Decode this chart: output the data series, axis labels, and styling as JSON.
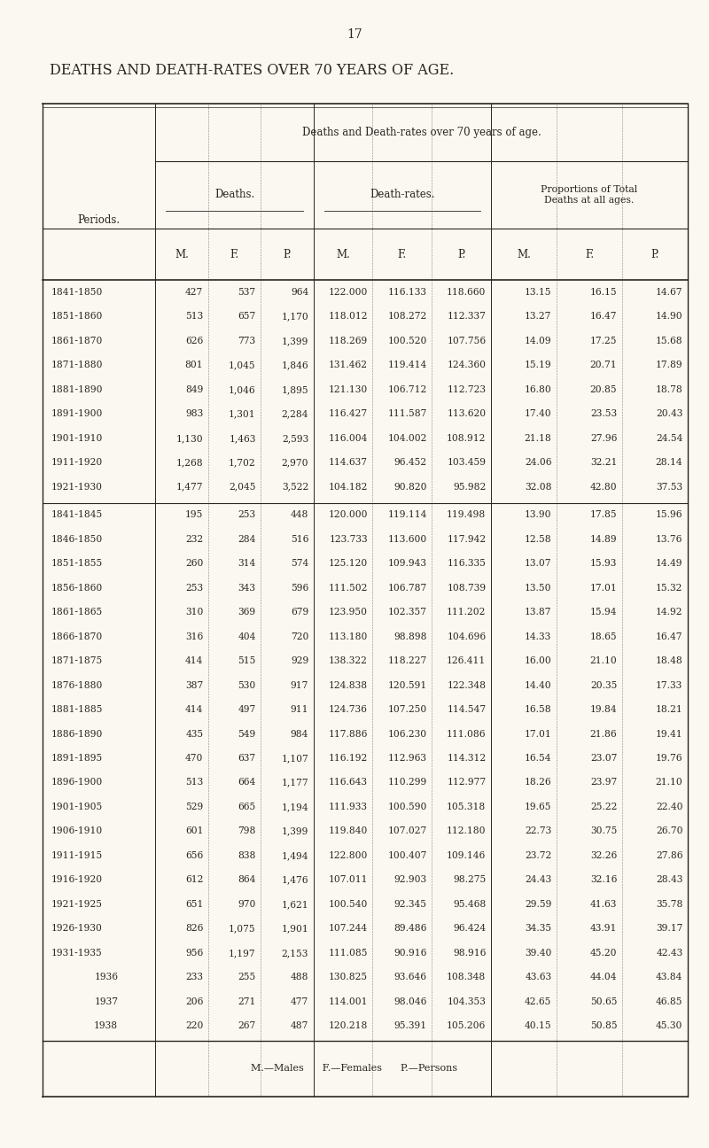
{
  "page_number": "17",
  "main_title": "DEATHS AND DEATH-RATES OVER 70 YEARS OF AGE.",
  "table_title": "Deaths and Death-rates over 70 years of age.",
  "col_group1": "Deaths.",
  "col_group2": "Death-rates.",
  "col_group3": "Proportions of Total\nDeaths at all ages.",
  "col_periods": "Periods.",
  "col_sub": [
    "M.",
    "F.",
    "P.",
    "M.",
    "F.",
    "P.",
    "M.",
    "F.",
    "P."
  ],
  "background_color": "#faf8f0",
  "text_color": "#2a2520",
  "rows": [
    [
      "1841-1850",
      "427",
      "537",
      "964",
      "122.000",
      "116.133",
      "118.660",
      "13.15",
      "16.15",
      "14.67"
    ],
    [
      "1851-1860",
      "513",
      "657",
      "1,170",
      "118.012",
      "108.272",
      "112.337",
      "13.27",
      "16.47",
      "14.90"
    ],
    [
      "1861-1870",
      "626",
      "773",
      "1,399",
      "118.269",
      "100.520",
      "107.756",
      "14.09",
      "17.25",
      "15.68"
    ],
    [
      "1871-1880",
      "801",
      "1,045",
      "1,846",
      "131.462",
      "119.414",
      "124.360",
      "15.19",
      "20.71",
      "17.89"
    ],
    [
      "1881-1890",
      "849",
      "1,046",
      "1,895",
      "121.130",
      "106.712",
      "112.723",
      "16.80",
      "20.85",
      "18.78"
    ],
    [
      "1891-1900",
      "983",
      "1,301",
      "2,284",
      "116.427",
      "111.587",
      "113.620",
      "17.40",
      "23.53",
      "20.43"
    ],
    [
      "1901-1910",
      "1,130",
      "1,463",
      "2,593",
      "116.004",
      "104.002",
      "108.912",
      "21.18",
      "27.96",
      "24.54"
    ],
    [
      "1911-1920",
      "1,268",
      "1,702",
      "2,970",
      "114.637",
      "96.452",
      "103.459",
      "24.06",
      "32.21",
      "28.14"
    ],
    [
      "1921-1930",
      "1,477",
      "2,045",
      "3,522",
      "104.182",
      "90.820",
      "95.982",
      "32.08",
      "42.80",
      "37.53"
    ],
    [
      "1841-1845",
      "195",
      "253",
      "448",
      "120.000",
      "119.114",
      "119.498",
      "13.90",
      "17.85",
      "15.96"
    ],
    [
      "1846-1850",
      "232",
      "284",
      "516",
      "123.733",
      "113.600",
      "117.942",
      "12.58",
      "14.89",
      "13.76"
    ],
    [
      "1851-1855",
      "260",
      "314",
      "574",
      "125.120",
      "109.943",
      "116.335",
      "13.07",
      "15.93",
      "14.49"
    ],
    [
      "1856-1860",
      "253",
      "343",
      "596",
      "111.502",
      "106.787",
      "108.739",
      "13.50",
      "17.01",
      "15.32"
    ],
    [
      "1861-1865",
      "310",
      "369",
      "679",
      "123.950",
      "102.357",
      "111.202",
      "13.87",
      "15.94",
      "14.92"
    ],
    [
      "1866-1870",
      "316",
      "404",
      "720",
      "113.180",
      "98.898",
      "104.696",
      "14.33",
      "18.65",
      "16.47"
    ],
    [
      "1871-1875",
      "414",
      "515",
      "929",
      "138.322",
      "118.227",
      "126.411",
      "16.00",
      "21.10",
      "18.48"
    ],
    [
      "1876-1880",
      "387",
      "530",
      "917",
      "124.838",
      "120.591",
      "122.348",
      "14.40",
      "20.35",
      "17.33"
    ],
    [
      "1881-1885",
      "414",
      "497",
      "911",
      "124.736",
      "107.250",
      "114.547",
      "16.58",
      "19.84",
      "18.21"
    ],
    [
      "1886-1890",
      "435",
      "549",
      "984",
      "117.886",
      "106.230",
      "111.086",
      "17.01",
      "21.86",
      "19.41"
    ],
    [
      "1891-1895",
      "470",
      "637",
      "1,107",
      "116.192",
      "112.963",
      "114.312",
      "16.54",
      "23.07",
      "19.76"
    ],
    [
      "1896-1900",
      "513",
      "664",
      "1,177",
      "116.643",
      "110.299",
      "112.977",
      "18.26",
      "23.97",
      "21.10"
    ],
    [
      "1901-1905",
      "529",
      "665",
      "1,194",
      "111.933",
      "100.590",
      "105.318",
      "19.65",
      "25.22",
      "22.40"
    ],
    [
      "1906-1910",
      "601",
      "798",
      "1,399",
      "119.840",
      "107.027",
      "112.180",
      "22.73",
      "30.75",
      "26.70"
    ],
    [
      "1911-1915",
      "656",
      "838",
      "1,494",
      "122.800",
      "100.407",
      "109.146",
      "23.72",
      "32.26",
      "27.86"
    ],
    [
      "1916-1920",
      "612",
      "864",
      "1,476",
      "107.011",
      "92.903",
      "98.275",
      "24.43",
      "32.16",
      "28.43"
    ],
    [
      "1921-1925",
      "651",
      "970",
      "1,621",
      "100.540",
      "92.345",
      "95.468",
      "29.59",
      "41.63",
      "35.78"
    ],
    [
      "1926-1930",
      "826",
      "1,075",
      "1,901",
      "107.244",
      "89.486",
      "96.424",
      "34.35",
      "43.91",
      "39.17"
    ],
    [
      "1931-1935",
      "956",
      "1,197",
      "2,153",
      "111.085",
      "90.916",
      "98.916",
      "39.40",
      "45.20",
      "42.43"
    ],
    [
      "1936",
      "233",
      "255",
      "488",
      "130.825",
      "93.646",
      "108.348",
      "43.63",
      "44.04",
      "43.84"
    ],
    [
      "1937",
      "206",
      "271",
      "477",
      "114.001",
      "98.046",
      "104.353",
      "42.65",
      "50.65",
      "46.85"
    ],
    [
      "1938",
      "220",
      "267",
      "487",
      "120.218",
      "95.391",
      "105.206",
      "40.15",
      "50.85",
      "45.30"
    ]
  ],
  "footer": "M.—Males      F.—Females      P.—Persons"
}
